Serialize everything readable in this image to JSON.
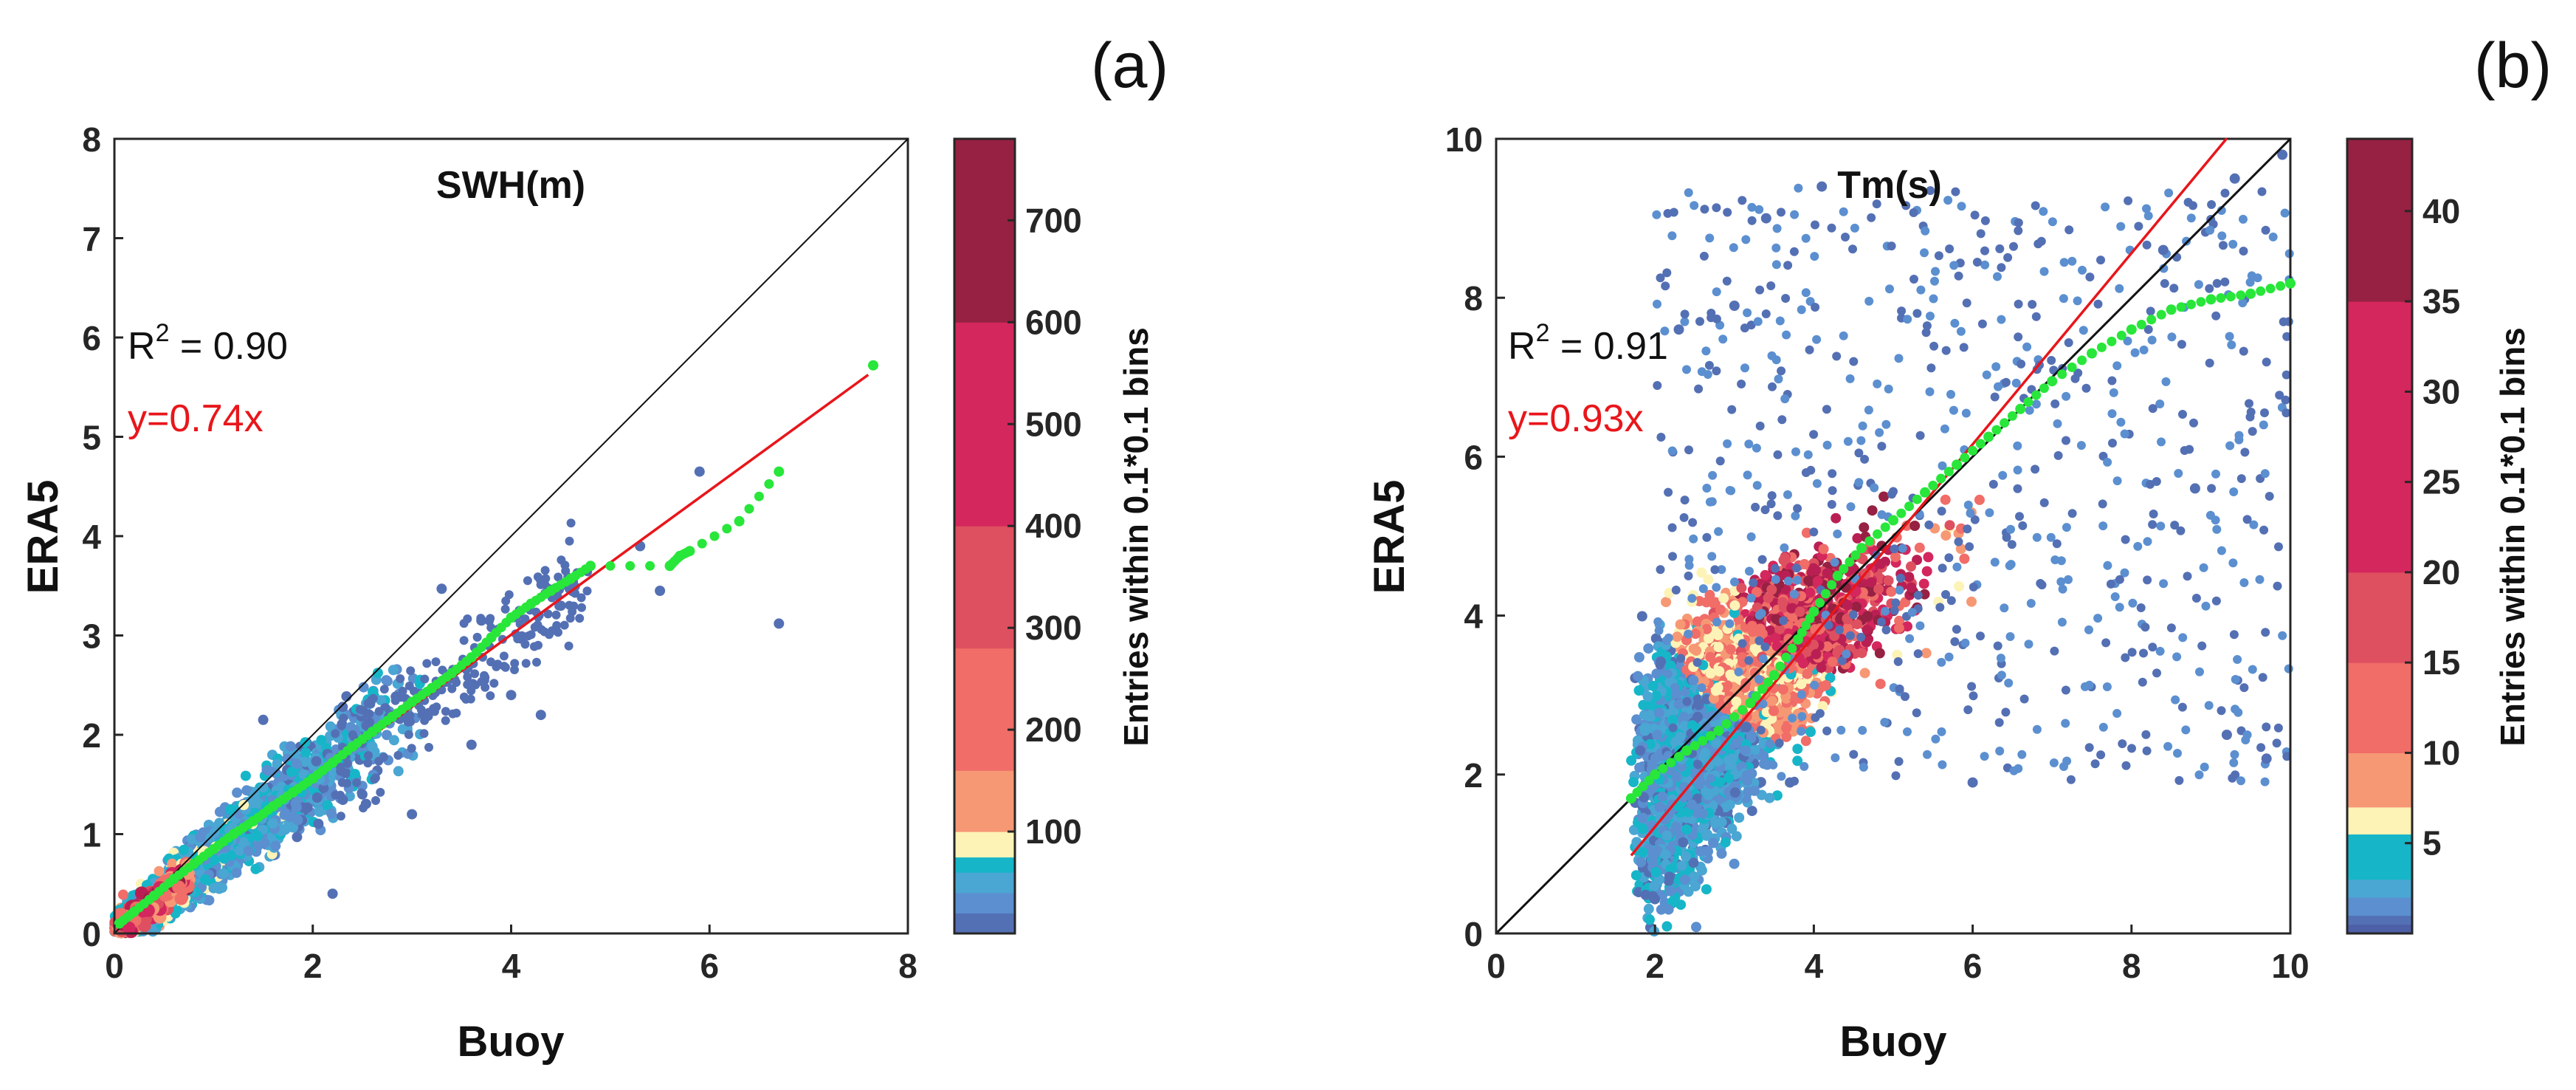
{
  "chart_data": [
    {
      "type": "scatter",
      "panel_label": "(a)",
      "title": "SWH(m)",
      "xlabel": "Buoy",
      "ylabel": "ERA5",
      "xlim": [
        0,
        8
      ],
      "ylim": [
        0,
        8
      ],
      "xticks": [
        "0",
        "2",
        "4",
        "6",
        "8"
      ],
      "yticks": [
        "0",
        "1",
        "2",
        "3",
        "4",
        "5",
        "6",
        "7",
        "8"
      ],
      "r2_prefix": "R",
      "r2_sup": "2",
      "r2_value": " = 0.90",
      "fit_label": "y=0.74x",
      "fit_slope": 0.74,
      "fit_x_range": [
        0,
        7.6
      ],
      "identity_line": true,
      "colorbar": {
        "label": "Entries within 0.1*0.1 bins",
        "range": [
          0,
          780
        ],
        "ticks": [
          "100",
          "200",
          "300",
          "400",
          "500",
          "600",
          "700"
        ],
        "tick_values": [
          100,
          200,
          300,
          400,
          500,
          600,
          700
        ]
      },
      "quantile_curve": [
        [
          0.05,
          0.1
        ],
        [
          0.2,
          0.22
        ],
        [
          0.4,
          0.38
        ],
        [
          0.6,
          0.55
        ],
        [
          0.8,
          0.7
        ],
        [
          1.0,
          0.85
        ],
        [
          1.2,
          1.0
        ],
        [
          1.4,
          1.13
        ],
        [
          1.6,
          1.28
        ],
        [
          1.8,
          1.42
        ],
        [
          2.0,
          1.56
        ],
        [
          2.2,
          1.72
        ],
        [
          2.4,
          1.88
        ],
        [
          2.6,
          2.03
        ],
        [
          2.8,
          2.18
        ],
        [
          3.0,
          2.33
        ],
        [
          3.2,
          2.47
        ],
        [
          3.4,
          2.62
        ],
        [
          3.6,
          2.78
        ],
        [
          3.8,
          2.98
        ],
        [
          4.0,
          3.18
        ],
        [
          4.2,
          3.32
        ],
        [
          4.4,
          3.45
        ],
        [
          4.6,
          3.57
        ],
        [
          4.8,
          3.7
        ],
        [
          5.6,
          3.7
        ],
        [
          5.7,
          3.8
        ],
        [
          5.8,
          3.85
        ],
        [
          6.3,
          4.15
        ],
        [
          6.7,
          4.65
        ],
        [
          7.65,
          5.72
        ]
      ],
      "outliers": [
        [
          5.9,
          4.65
        ],
        [
          6.7,
          3.12
        ],
        [
          5.5,
          3.45
        ],
        [
          5.3,
          3.9
        ],
        [
          4.3,
          2.2
        ],
        [
          4.0,
          2.4
        ],
        [
          3.7,
          3.15
        ],
        [
          3.3,
          3.47
        ],
        [
          2.2,
          0.4
        ],
        [
          1.5,
          2.15
        ],
        [
          4.5,
          3.3
        ],
        [
          3.0,
          1.2
        ],
        [
          2.5,
          1.4
        ],
        [
          3.6,
          1.9
        ]
      ]
    },
    {
      "type": "scatter",
      "panel_label": "(b)",
      "title": "Tm(s)",
      "xlabel": "Buoy",
      "ylabel": "ERA5",
      "xlim": [
        0,
        10
      ],
      "ylim": [
        0,
        10
      ],
      "xticks": [
        "0",
        "2",
        "4",
        "6",
        "8",
        "10"
      ],
      "yticks": [
        "0",
        "2",
        "4",
        "6",
        "8",
        "10"
      ],
      "r2_prefix": "R",
      "r2_sup": "2",
      "r2_value": " = 0.91",
      "fit_label": "y=0.93x",
      "fit_slope": 0.93,
      "fit_x_range": [
        1.7,
        9.2
      ],
      "identity_line": true,
      "colorbar": {
        "label": "Entries within 0.1*0.1 bins",
        "range": [
          0,
          44
        ],
        "ticks": [
          "5",
          "10",
          "15",
          "20",
          "25",
          "30",
          "35",
          "40"
        ],
        "tick_values": [
          5,
          10,
          15,
          20,
          25,
          30,
          35,
          40
        ]
      },
      "quantile_curve": [
        [
          1.7,
          1.7
        ],
        [
          2.0,
          2.0
        ],
        [
          2.4,
          2.3
        ],
        [
          2.8,
          2.55
        ],
        [
          3.2,
          2.9
        ],
        [
          3.5,
          3.25
        ],
        [
          3.8,
          3.7
        ],
        [
          4.0,
          4.05
        ],
        [
          4.3,
          4.5
        ],
        [
          4.6,
          4.85
        ],
        [
          5.0,
          5.2
        ],
        [
          5.4,
          5.55
        ],
        [
          5.8,
          5.9
        ],
        [
          6.2,
          6.25
        ],
        [
          6.6,
          6.6
        ],
        [
          7.0,
          6.95
        ],
        [
          7.5,
          7.3
        ],
        [
          8.0,
          7.6
        ],
        [
          8.5,
          7.85
        ],
        [
          9.0,
          7.98
        ],
        [
          9.5,
          8.05
        ],
        [
          10.0,
          8.18
        ]
      ],
      "outliers": [
        [
          3.4,
          9.0
        ],
        [
          4.1,
          9.4
        ],
        [
          8.4,
          8.6
        ],
        [
          9.3,
          9.5
        ],
        [
          9.9,
          9.8
        ],
        [
          9.7,
          2.2
        ],
        [
          9.2,
          2.5
        ],
        [
          6.0,
          1.9
        ],
        [
          3.7,
          1.9
        ],
        [
          2.3,
          7.6
        ],
        [
          3.0,
          7.9
        ],
        [
          8.8,
          5.6
        ]
      ]
    }
  ]
}
